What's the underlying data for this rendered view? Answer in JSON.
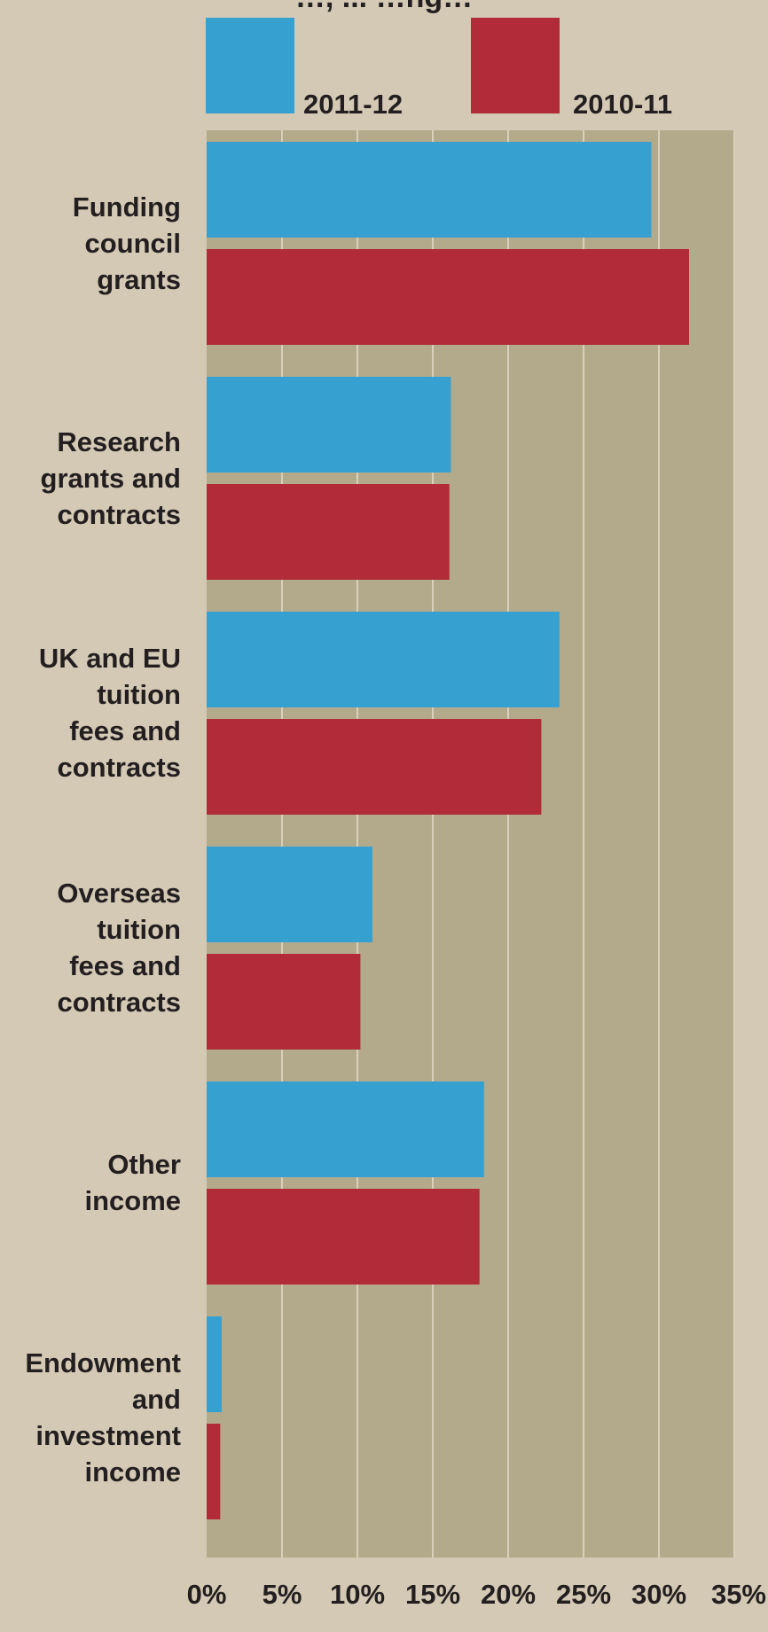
{
  "chart_data": {
    "type": "bar",
    "orientation": "horizontal",
    "title_partial": "…, ... …ng…",
    "categories": [
      "Funding\ncouncil\ngrants",
      "Research\ngrants and\ncontracts",
      "UK and EU\ntuition\nfees and\ncontracts",
      "Overseas\ntuition\nfees and\ncontracts",
      "Other\nincome",
      "Endowment\nand\ninvestment\nincome"
    ],
    "series": [
      {
        "name": "2011-12",
        "color": "#36a0d0",
        "values": [
          29.5,
          16.2,
          23.4,
          11.0,
          18.4,
          1.0
        ]
      },
      {
        "name": "2010-11",
        "color": "#b12b38",
        "values": [
          32.0,
          16.1,
          22.2,
          10.2,
          18.1,
          0.9
        ]
      }
    ],
    "xlim": [
      0,
      35
    ],
    "tick_labels": [
      "0%",
      "5%",
      "10%",
      "15%",
      "20%",
      "25%",
      "30%",
      "35%"
    ],
    "grid": true,
    "legend_position": "top",
    "plot_background": "#b3aa8c",
    "page_background": "#d4c9b4",
    "grid_color": "#d9d0bb"
  }
}
